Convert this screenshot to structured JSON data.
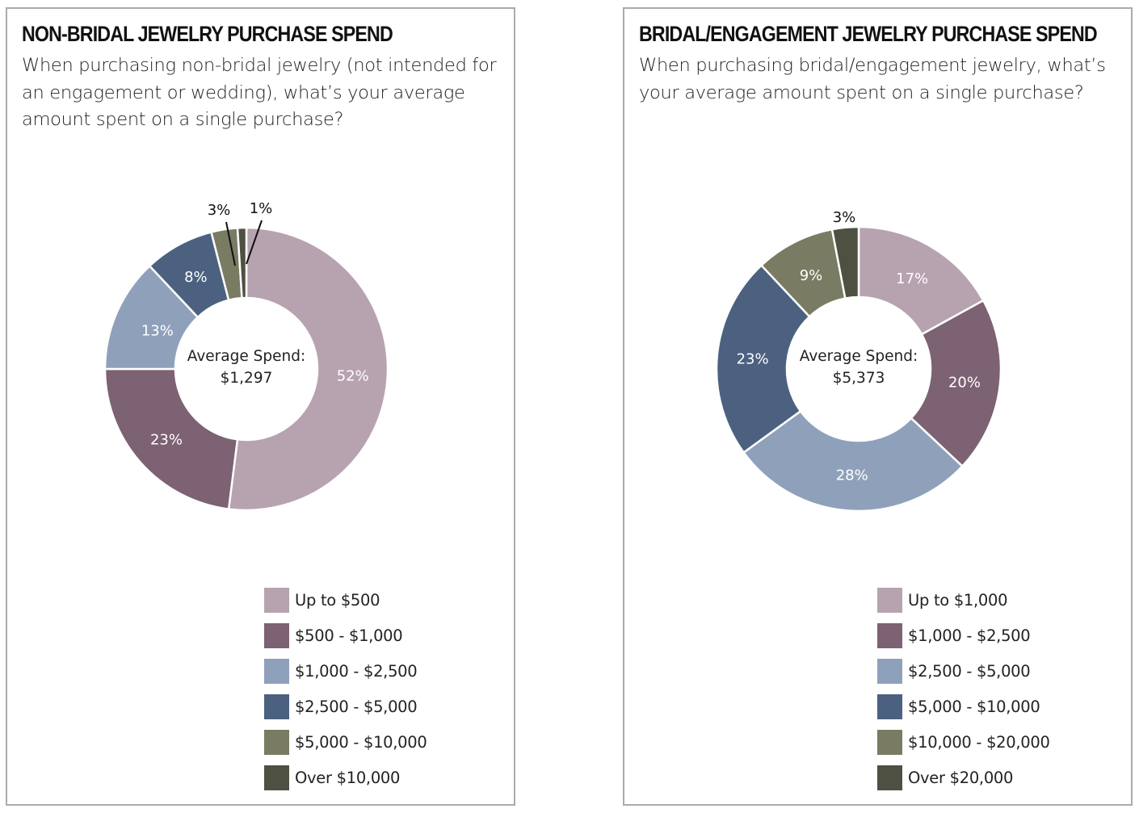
{
  "chart_data": [
    {
      "type": "pie",
      "variant": "donut",
      "title": "NON-BRIDAL JEWELRY PURCHASE SPEND",
      "subtitle": "When purchasing non-bridal jewelry (not intended for an engagement or wedding), what’s your average amount spent on a single purchase?",
      "center_label": [
        "Average Spend:",
        "$1,297"
      ],
      "categories": [
        "Up to $500",
        "$500 - $1,000",
        "$1,000 - $2,500",
        "$2,500 - $5,000",
        "$5,000 - $10,000",
        "Over $10,000"
      ],
      "values": [
        52,
        23,
        13,
        8,
        3,
        1
      ],
      "labels": [
        "52%",
        "23%",
        "13%",
        "8%",
        "3%",
        "1%"
      ],
      "colors": [
        "#b7a3b0",
        "#7c6272",
        "#8fa1ba",
        "#4c6180",
        "#7a7b63",
        "#4e5141"
      ],
      "legend_position": "bottom-right"
    },
    {
      "type": "pie",
      "variant": "donut",
      "title": "BRIDAL/ENGAGEMENT JEWELRY PURCHASE SPEND",
      "subtitle": "When purchasing bridal/engagement jewelry, what’s your average amount spent on a single purchase?",
      "center_label": [
        "Average Spend:",
        "$5,373"
      ],
      "categories": [
        "Up to $1,000",
        "$1,000 - $2,500",
        "$2,500 - $5,000",
        "$5,000 - $10,000",
        "$10,000 - $20,000",
        "Over $20,000"
      ],
      "values": [
        17,
        20,
        28,
        23,
        9,
        3
      ],
      "labels": [
        "17%",
        "20%",
        "28%",
        "23%",
        "9%",
        "3%"
      ],
      "colors": [
        "#b7a3b0",
        "#7c6272",
        "#8fa1ba",
        "#4c6180",
        "#7a7b63",
        "#4e5141"
      ],
      "legend_position": "bottom-right"
    }
  ]
}
